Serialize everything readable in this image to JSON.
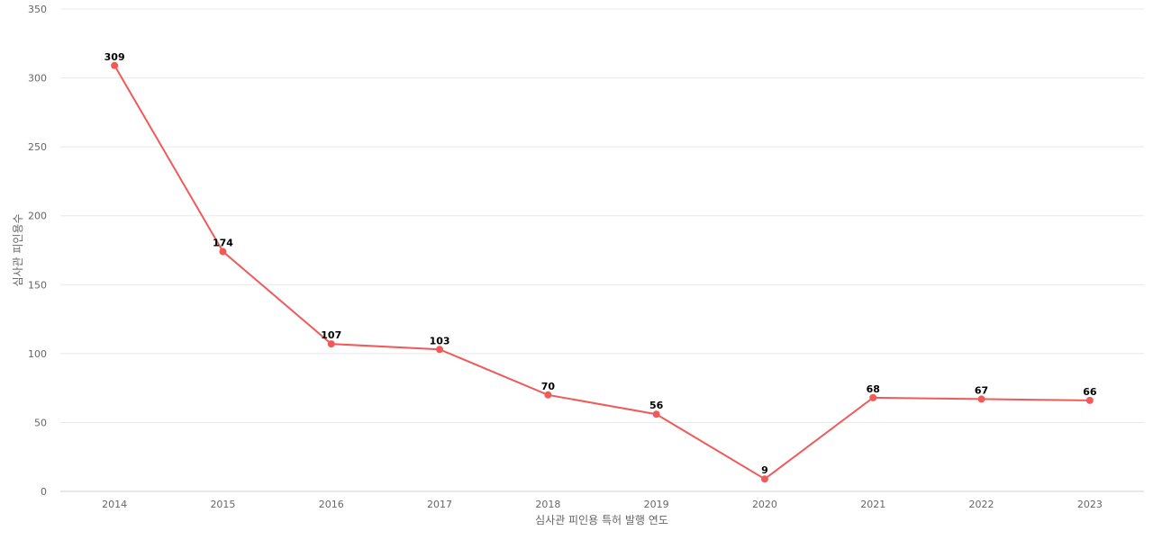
{
  "chart_data": {
    "type": "line",
    "title": "",
    "xlabel": "심사관 피인용 특허 발행 연도",
    "ylabel": "심사관 피인용수",
    "categories": [
      "2014",
      "2015",
      "2016",
      "2017",
      "2018",
      "2019",
      "2020",
      "2021",
      "2022",
      "2023"
    ],
    "series": [
      {
        "name": "심사관 피인용수",
        "color": "#f05a5a",
        "values": [
          309,
          174,
          107,
          103,
          70,
          56,
          9,
          68,
          67,
          66
        ]
      }
    ],
    "ylim": [
      0,
      350
    ],
    "yticks": [
      "0",
      "50",
      "100",
      "150",
      "200",
      "250",
      "300",
      "350"
    ],
    "grid": true,
    "legend": "none"
  }
}
